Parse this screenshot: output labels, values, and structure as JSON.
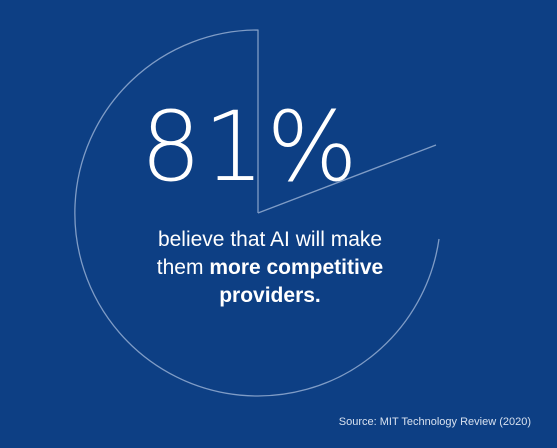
{
  "stat": {
    "value": "81%",
    "fraction_shown": 0.81
  },
  "caption": {
    "line1": "believe that AI will make",
    "line2_plain": "them ",
    "line2_bold": "more competitive",
    "line3_bold": "providers."
  },
  "source": "Source: MIT Technology Review (2020)",
  "colors": {
    "background": "#0d3f84",
    "text": "#ffffff",
    "outline": "#7f9cc6"
  }
}
